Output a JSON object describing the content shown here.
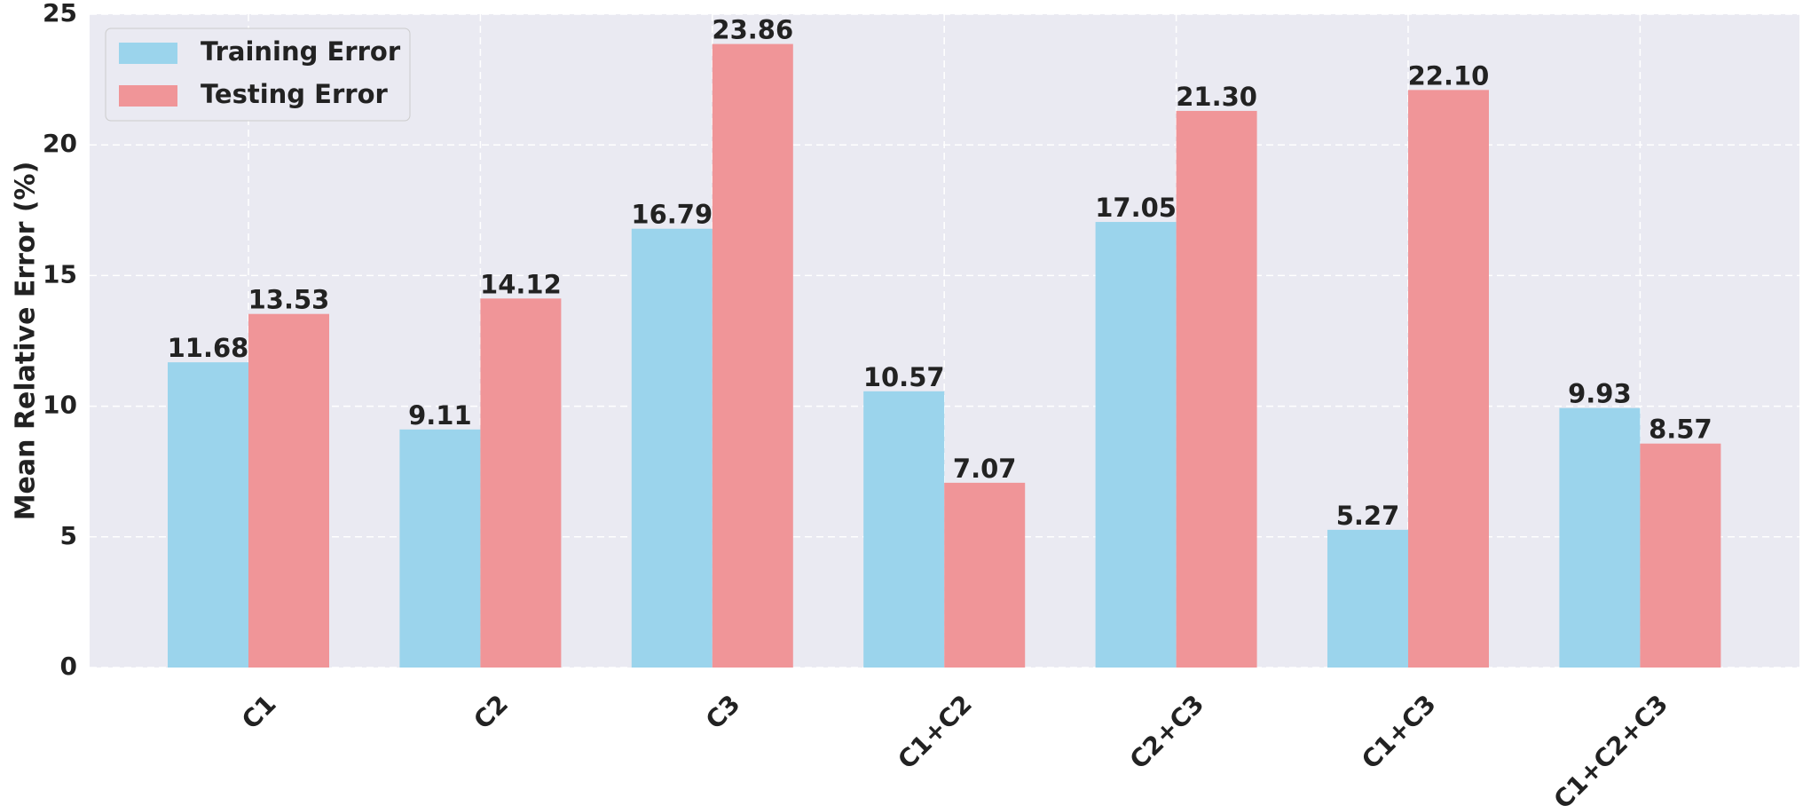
{
  "chart_data": {
    "type": "bar",
    "y_label": "Mean Relative Error (%)",
    "categories": [
      "C1",
      "C2",
      "C3",
      "C1+C2",
      "C2+C3",
      "C1+C3",
      "C1+C2+C3"
    ],
    "series": [
      {
        "name": "Training Error",
        "color": "#9bd4ec",
        "values": [
          11.68,
          9.11,
          16.79,
          10.57,
          17.05,
          5.27,
          9.93
        ],
        "value_labels": [
          "11.68",
          "9.11",
          "16.79",
          "10.57",
          "17.05",
          "5.27",
          "9.93"
        ]
      },
      {
        "name": "Testing Error",
        "color": "#f09598",
        "values": [
          13.53,
          14.12,
          23.86,
          7.07,
          21.3,
          22.1,
          8.57
        ],
        "value_labels": [
          "13.53",
          "14.12",
          "23.86",
          "7.07",
          "21.30",
          "22.10",
          "8.57"
        ]
      }
    ],
    "ylim": [
      0,
      25
    ],
    "yticks": [
      0,
      5,
      10,
      15,
      20,
      25
    ],
    "grid": true,
    "legend": "upper left"
  }
}
